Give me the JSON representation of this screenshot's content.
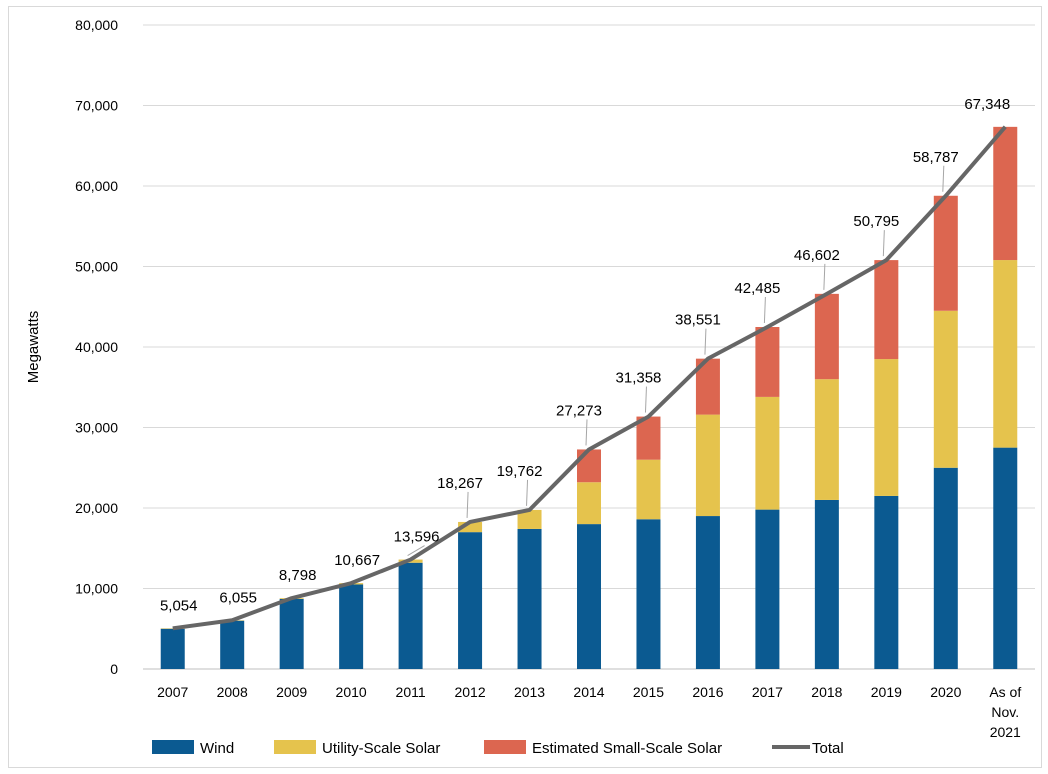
{
  "chart_data": {
    "type": "bar",
    "stacked": true,
    "title": "",
    "xlabel": "",
    "ylabel": "Megawatts",
    "ylim": [
      0,
      80000
    ],
    "yticks": [
      0,
      10000,
      20000,
      30000,
      40000,
      50000,
      60000,
      70000,
      80000
    ],
    "ytick_labels": [
      "0",
      "10,000",
      "20,000",
      "30,000",
      "40,000",
      "50,000",
      "60,000",
      "70,000",
      "80,000"
    ],
    "grid": true,
    "legend_position": "bottom",
    "categories": [
      "2007",
      "2008",
      "2009",
      "2010",
      "2011",
      "2012",
      "2013",
      "2014",
      "2015",
      "2016",
      "2017",
      "2018",
      "2019",
      "2020",
      "As of Nov. 2021"
    ],
    "category_lines": [
      [
        "2007"
      ],
      [
        "2008"
      ],
      [
        "2009"
      ],
      [
        "2010"
      ],
      [
        "2011"
      ],
      [
        "2012"
      ],
      [
        "2013"
      ],
      [
        "2014"
      ],
      [
        "2015"
      ],
      [
        "2016"
      ],
      [
        "2017"
      ],
      [
        "2018"
      ],
      [
        "2019"
      ],
      [
        "2020"
      ],
      [
        "As of",
        "Nov.",
        "2021"
      ]
    ],
    "series": [
      {
        "name": "Wind",
        "color": "#0b5a91",
        "values": [
          5000,
          6000,
          8700,
          10500,
          13200,
          17000,
          17400,
          18000,
          18600,
          19000,
          19800,
          21000,
          21500,
          25000,
          27500
        ]
      },
      {
        "name": "Utility-Scale Solar",
        "color": "#e5c34d",
        "values": [
          54,
          55,
          98,
          167,
          396,
          1267,
          2362,
          5200,
          7400,
          12600,
          14000,
          15000,
          17000,
          19500,
          23300
        ]
      },
      {
        "name": "Estimated Small-Scale Solar",
        "color": "#dc6650",
        "values": [
          0,
          0,
          0,
          0,
          0,
          0,
          0,
          4073,
          5358,
          6951,
          8685,
          10602,
          12295,
          14287,
          16548
        ]
      }
    ],
    "total": {
      "name": "Total",
      "color": "#666666",
      "values": [
        5054,
        6055,
        8798,
        10667,
        13596,
        18267,
        19762,
        27273,
        31358,
        38551,
        42485,
        46602,
        50795,
        58787,
        67348
      ],
      "labels": [
        "5,054",
        "6,055",
        "8,798",
        "10,667",
        "13,596",
        "18,267",
        "19,762",
        "27,273",
        "31,358",
        "38,551",
        "42,485",
        "46,602",
        "50,795",
        "58,787",
        "67,348"
      ]
    }
  }
}
